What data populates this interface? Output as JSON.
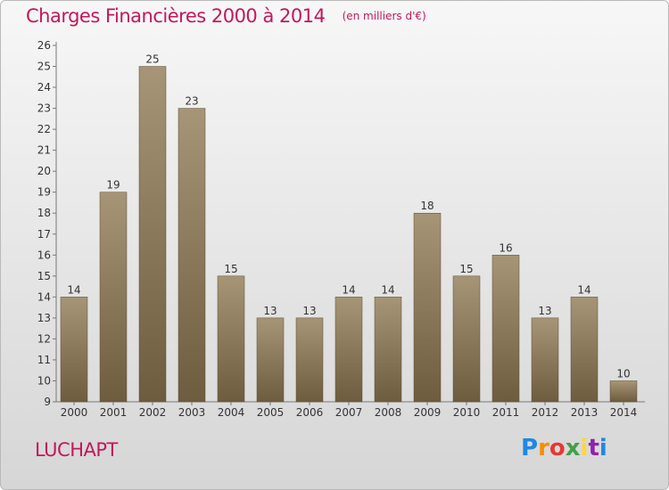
{
  "header": {
    "title": "Charges Financières 2000 à 2014",
    "unit": "(en milliers d'€)"
  },
  "footer": {
    "commune": "LUCHAPT",
    "logo": "Proxiti"
  },
  "chart_data": {
    "type": "bar",
    "title": "Charges Financières 2000 à 2014",
    "subtitle": "(en milliers d'€)",
    "categories": [
      "2000",
      "2001",
      "2002",
      "2003",
      "2004",
      "2005",
      "2006",
      "2007",
      "2008",
      "2009",
      "2010",
      "2011",
      "2012",
      "2013",
      "2014"
    ],
    "values": [
      14,
      19,
      25,
      23,
      15,
      13,
      13,
      14,
      14,
      18,
      15,
      16,
      13,
      14,
      10
    ],
    "ylim": [
      9,
      26
    ],
    "yticks": [
      9,
      10,
      11,
      12,
      13,
      14,
      15,
      16,
      17,
      18,
      19,
      20,
      21,
      22,
      23,
      24,
      25,
      26
    ],
    "grid": false,
    "bar_color": "#8c7a5c",
    "accent_color": "#c2185b"
  }
}
